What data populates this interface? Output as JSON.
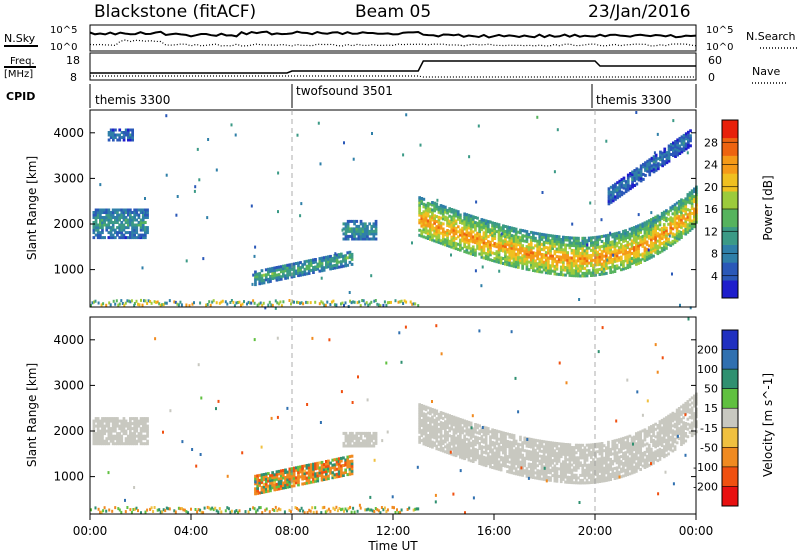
{
  "header": {
    "station": "Blackstone (fitACF)",
    "beam": "Beam 05",
    "date": "23/Jan/2016"
  },
  "summary_panel": {
    "nsky_label": "N.Sky",
    "nsky_ticks": [
      "10^5",
      "10^0"
    ],
    "nsearch_label": "N.Search",
    "nsearch_ticks": [
      "10^5",
      "10^0"
    ],
    "freq_label": "Freq.",
    "freq_unit": "[MHz]",
    "freq_ticks": [
      "18",
      "8"
    ],
    "nave_label": "Nave",
    "nave_ticks": [
      "60",
      "0"
    ],
    "cpid_label": "CPID",
    "cpid_segments": [
      {
        "label": "themis 3300",
        "start_h": 0,
        "end_h": 8
      },
      {
        "label": "twofsound 3501",
        "start_h": 8,
        "end_h": 20
      },
      {
        "label": "themis 3300",
        "start_h": 20,
        "end_h": 24
      }
    ]
  },
  "x_axis": {
    "label": "Time UT",
    "range_h": [
      0,
      24
    ],
    "ticks": [
      {
        "h": 0,
        "label": "00:00"
      },
      {
        "h": 4,
        "label": "04:00"
      },
      {
        "h": 8,
        "label": "08:00"
      },
      {
        "h": 12,
        "label": "12:00"
      },
      {
        "h": 16,
        "label": "16:00"
      },
      {
        "h": 20,
        "label": "20:00"
      },
      {
        "h": 24,
        "label": "00:00"
      }
    ]
  },
  "chart_data": [
    {
      "type": "heatmap",
      "title": "",
      "ylabel": "Slant Range [km]",
      "ylim": [
        180,
        4500
      ],
      "y_ticks": [
        1000,
        2000,
        3000,
        4000
      ],
      "colorbar": {
        "label": "Power [dB]",
        "range": [
          0,
          32
        ],
        "ticks": [
          4,
          8,
          12,
          16,
          20,
          24,
          28
        ],
        "colors": [
          "#1e1ecc",
          "#2a58b8",
          "#2f7fa8",
          "#3b9a86",
          "#56b35e",
          "#9ccb3c",
          "#f0c020",
          "#f59a18",
          "#ee6410",
          "#e8200a"
        ]
      },
      "regions": [
        {
          "name": "early-echo",
          "t": [
            0.1,
            2.3
          ],
          "r_center": 2000,
          "r_half": 320,
          "value": 12
        },
        {
          "name": "early-upper",
          "t": [
            0.7,
            1.7
          ],
          "r_center": 3950,
          "r_half": 130,
          "value": 8
        },
        {
          "name": "morning-band",
          "t": [
            6.5,
            10.4
          ],
          "r_center": 1000,
          "r_half": 150,
          "value": 14
        },
        {
          "name": "midday-patch",
          "t": [
            10.0,
            11.3
          ],
          "r_center": 1850,
          "r_half": 200,
          "value": 12
        },
        {
          "name": "main-band",
          "t": [
            13.0,
            24.0
          ],
          "r_center": 1500,
          "r_half": 420,
          "value": 22
        },
        {
          "name": "evening-upper",
          "t": [
            20.5,
            23.8
          ],
          "r_center": 3300,
          "r_half": 180,
          "value": 8
        }
      ]
    },
    {
      "type": "heatmap",
      "title": "",
      "ylabel": "Slant Range [km]",
      "ylim": [
        180,
        4500
      ],
      "y_ticks": [
        1000,
        2000,
        3000,
        4000
      ],
      "colorbar": {
        "label": "Velocity [m s^-1]",
        "tick_labels": [
          "200",
          "100",
          "50",
          "15",
          "-15",
          "-50",
          "-100",
          "-200"
        ],
        "colors": [
          "#2030c0",
          "#3070b0",
          "#2f9070",
          "#60c040",
          "#c8c8c0",
          "#f0c040",
          "#f08a20",
          "#f05010",
          "#e81010"
        ]
      },
      "regions": [
        {
          "name": "early-echo",
          "t": [
            0.1,
            2.3
          ],
          "r_center": 2000,
          "r_half": 300,
          "value": 0
        },
        {
          "name": "morning-band",
          "t": [
            6.5,
            10.4
          ],
          "r_center": 1000,
          "r_half": 200,
          "value": -60
        },
        {
          "name": "midday-patch",
          "t": [
            10.0,
            11.3
          ],
          "r_center": 1800,
          "r_half": 150,
          "value": 0
        },
        {
          "name": "main-band",
          "t": [
            13.0,
            24.0
          ],
          "r_center": 1550,
          "r_half": 420,
          "value": 0
        }
      ]
    }
  ]
}
